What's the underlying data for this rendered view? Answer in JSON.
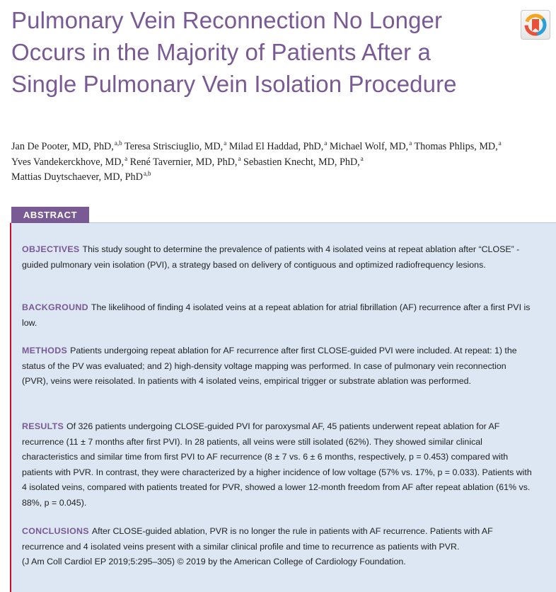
{
  "article": {
    "title": "Pulmonary Vein Reconnection No Longer Occurs in the Majority of Patients After a Single Pulmonary Vein Isolation Procedure"
  },
  "crossmark": {
    "icon": "crossmark-icon",
    "colors": [
      "#e8503a",
      "#f4a51c",
      "#2a9fd6"
    ]
  },
  "authors": [
    {
      "name": "Jan De Pooter, MD, PhD,",
      "sup": "a,b"
    },
    {
      "name": "Teresa Strisciuglio, MD,",
      "sup": "a"
    },
    {
      "name": "Milad El Haddad, PhD,",
      "sup": "a"
    },
    {
      "name": "Michael Wolf, MD,",
      "sup": "a"
    },
    {
      "name": "Thomas Phlips, MD,",
      "sup": "a"
    },
    {
      "name": "Yves Vandekerckhove, MD,",
      "sup": "a"
    },
    {
      "name": "René Tavernier, MD, PhD,",
      "sup": "a"
    },
    {
      "name": "Sebastien Knecht, MD, PhD,",
      "sup": "a"
    },
    {
      "name": "Mattias Duytschaever, MD, PhD",
      "sup": "a,b"
    }
  ],
  "abstract": {
    "label": "ABSTRACT",
    "sections": [
      {
        "heading": "OBJECTIVES",
        "text": "This study sought to determine the prevalence of patients with 4 isolated veins at repeat ablation after “CLOSE” -guided pulmonary vein isolation (PVI), a strategy based on delivery of contiguous and optimized radiofrequency lesions."
      },
      {
        "heading": "BACKGROUND",
        "text": "The likelihood of finding 4 isolated veins at a repeat ablation for atrial fibrillation (AF) recurrence after a first PVI is low."
      },
      {
        "heading": "METHODS",
        "text": "Patients undergoing repeat ablation for AF recurrence after first CLOSE-guided PVI were included. At repeat: 1) the status of the PV was evaluated; and 2) high-density voltage mapping was performed. In case of pulmonary vein reconnection (PVR), veins were reisolated. In patients with 4 isolated veins, empirical trigger or substrate ablation was performed."
      },
      {
        "heading": "RESULTS",
        "text": "Of 326 patients undergoing CLOSE-guided PVI for paroxysmal AF, 45 patients underwent repeat ablation for AF recurrence (11 ± 7 months after first PVI). In 28 patients, all veins were still isolated (62%). They showed similar clinical characteristics and similar time from first PVI to AF recurrence (8 ± 7 vs. 6 ± 6 months, respectively, p = 0.453) compared with patients with PVR. In contrast, they were characterized by a higher incidence of low voltage (57% vs. 17%, p = 0.033). Patients with 4 isolated veins, compared with patients treated for PVR, showed a lower 12-month freedom from AF after repeat ablation (61% vs. 88%, p = 0.045)."
      },
      {
        "heading": "CONCLUSIONS",
        "text": "After CLOSE-guided ablation, PVR is no longer the rule in patients with AF recurrence. Patients with AF recurrence and 4 isolated veins present with a similar clinical profile and time to recurrence as patients with PVR.",
        "citation": "(J Am Coll Cardiol EP 2019;5:295–305) © 2019 by the American College of Cardiology Foundation."
      }
    ]
  }
}
